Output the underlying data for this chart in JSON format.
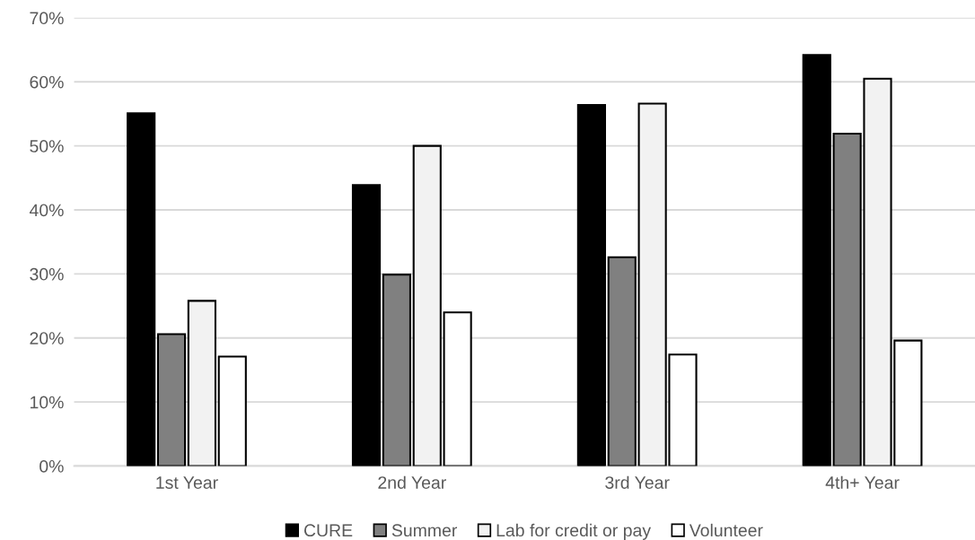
{
  "chart_data": {
    "type": "bar",
    "categories": [
      "1st Year",
      "2nd Year",
      "3rd Year",
      "4th+ Year"
    ],
    "series": [
      {
        "name": "CURE",
        "color": "#000000",
        "values": [
          55.1,
          43.9,
          56.4,
          64.2
        ]
      },
      {
        "name": "Summer",
        "color": "#808080",
        "values": [
          20.6,
          29.9,
          32.6,
          51.9
        ]
      },
      {
        "name": "Lab for credit or pay",
        "color": "#f2f2f2",
        "values": [
          25.8,
          50.0,
          56.6,
          60.5
        ]
      },
      {
        "name": "Volunteer",
        "color": "#ffffff",
        "values": [
          17.1,
          24.0,
          17.4,
          19.6
        ]
      }
    ],
    "ylim": [
      0,
      70
    ],
    "yticks": [
      {
        "value": 0,
        "label": "0%"
      },
      {
        "value": 10,
        "label": "10%"
      },
      {
        "value": 20,
        "label": "20%"
      },
      {
        "value": 30,
        "label": "30%"
      },
      {
        "value": 40,
        "label": "40%"
      },
      {
        "value": 50,
        "label": "50%"
      },
      {
        "value": 60,
        "label": "60%"
      },
      {
        "value": 70,
        "label": "70%"
      }
    ],
    "grid": "y",
    "legend": "bottom"
  }
}
